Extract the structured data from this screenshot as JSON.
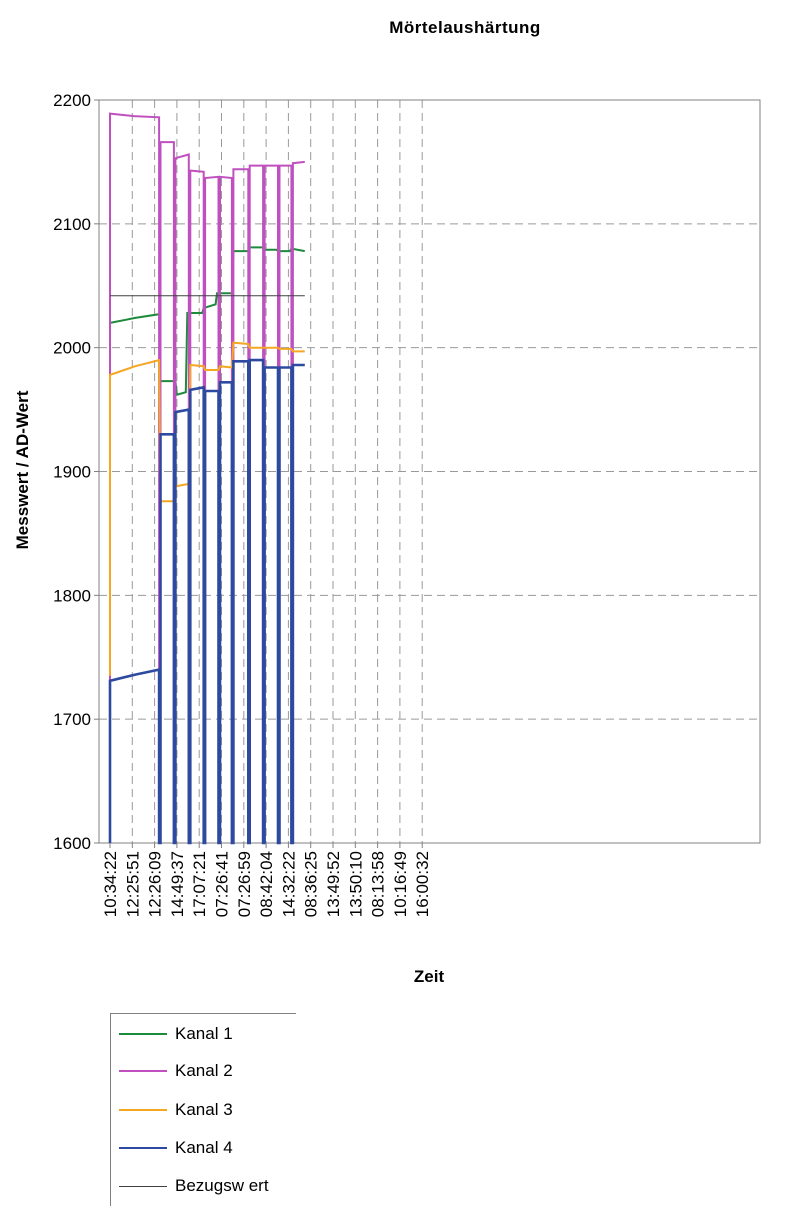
{
  "chart_data": {
    "type": "line",
    "title": "Mörtelaushärtung",
    "xlabel": "Zeit",
    "ylabel": "Messwert / AD-Wert",
    "ylim": [
      1600,
      2200
    ],
    "yticks": [
      1600,
      1700,
      1800,
      1900,
      2000,
      2100,
      2200
    ],
    "xticks": [
      "10:34:22",
      "12:25:51",
      "12:26:09",
      "14:49:37",
      "17:07:21",
      "07:26:41",
      "07:26:59",
      "08:42:04",
      "14:32:22",
      "08:36:25",
      "13:49:52",
      "13:50:10",
      "08:13:58",
      "10:16:49",
      "16:00:32"
    ],
    "x_unit": "measurement index (tick labels are timestamps at every 15th sample)",
    "grid": true,
    "legend_position": "bottom-left",
    "series": [
      {
        "name": "Kanal 1",
        "color": "#1e8a3c",
        "points": [
          [
            0,
            2020
          ],
          [
            17,
            2024
          ],
          [
            33,
            2027
          ],
          [
            34,
            1973
          ],
          [
            44,
            1973
          ],
          [
            45,
            1962
          ],
          [
            51,
            1964
          ],
          [
            52,
            2028
          ],
          [
            62,
            2028
          ],
          [
            63,
            2032
          ],
          [
            71,
            2035
          ],
          [
            72,
            2044
          ],
          [
            82,
            2044
          ],
          [
            83,
            2078
          ],
          [
            93,
            2078
          ],
          [
            94,
            2081
          ],
          [
            103,
            2081
          ],
          [
            104,
            2079
          ],
          [
            112,
            2079
          ],
          [
            113,
            2078
          ],
          [
            121,
            2078
          ],
          [
            122,
            2080
          ],
          [
            131,
            2078
          ]
        ]
      },
      {
        "name": "Kanal 2",
        "color": "#c050c0",
        "points": [
          [
            0,
            1600
          ],
          [
            0,
            2189
          ],
          [
            16,
            2187
          ],
          [
            33,
            2186
          ],
          [
            33,
            1600
          ],
          [
            34,
            1600
          ],
          [
            34,
            2166
          ],
          [
            43,
            2166
          ],
          [
            43,
            1600
          ],
          [
            44,
            1600
          ],
          [
            44,
            2153
          ],
          [
            53,
            2156
          ],
          [
            53,
            1600
          ],
          [
            54,
            1600
          ],
          [
            54,
            2143
          ],
          [
            63,
            2142
          ],
          [
            63,
            1600
          ],
          [
            64,
            1600
          ],
          [
            64,
            2137
          ],
          [
            73,
            2138
          ],
          [
            73,
            1600
          ],
          [
            74,
            1600
          ],
          [
            74,
            2138
          ],
          [
            82,
            2137
          ],
          [
            82,
            1600
          ],
          [
            83,
            1600
          ],
          [
            83,
            2144
          ],
          [
            93,
            2144
          ],
          [
            93,
            1600
          ],
          [
            94,
            1600
          ],
          [
            94,
            2147
          ],
          [
            103,
            2147
          ],
          [
            103,
            1600
          ],
          [
            104,
            1600
          ],
          [
            104,
            2147
          ],
          [
            113,
            2147
          ],
          [
            113,
            1600
          ],
          [
            114,
            1600
          ],
          [
            114,
            2147
          ],
          [
            122,
            2147
          ],
          [
            122,
            1600
          ],
          [
            123,
            1600
          ],
          [
            123,
            2149
          ],
          [
            131,
            2150
          ]
        ]
      },
      {
        "name": "Kanal 3",
        "color": "#f5a623",
        "points": [
          [
            0,
            1735
          ],
          [
            0,
            1978
          ],
          [
            17,
            1985
          ],
          [
            33,
            1990
          ],
          [
            34,
            1876
          ],
          [
            43,
            1876
          ],
          [
            44,
            1888
          ],
          [
            53,
            1890
          ],
          [
            54,
            1986
          ],
          [
            63,
            1985
          ],
          [
            64,
            1982
          ],
          [
            73,
            1982
          ],
          [
            74,
            1985
          ],
          [
            82,
            1984
          ],
          [
            83,
            2004
          ],
          [
            93,
            2003
          ],
          [
            94,
            2000
          ],
          [
            103,
            2000
          ],
          [
            104,
            2000
          ],
          [
            113,
            2000
          ],
          [
            114,
            1999
          ],
          [
            122,
            1999
          ],
          [
            123,
            1997
          ],
          [
            131,
            1997
          ]
        ]
      },
      {
        "name": "Kanal 4",
        "color": "#2e4aa0",
        "points": [
          [
            0,
            1600
          ],
          [
            0,
            1731
          ],
          [
            17,
            1736
          ],
          [
            33,
            1740
          ],
          [
            33,
            1600
          ],
          [
            34,
            1600
          ],
          [
            34,
            1930
          ],
          [
            43,
            1930
          ],
          [
            43,
            1600
          ],
          [
            44,
            1600
          ],
          [
            44,
            1948
          ],
          [
            53,
            1950
          ],
          [
            53,
            1600
          ],
          [
            54,
            1600
          ],
          [
            54,
            1966
          ],
          [
            63,
            1968
          ],
          [
            63,
            1600
          ],
          [
            64,
            1600
          ],
          [
            64,
            1965
          ],
          [
            73,
            1965
          ],
          [
            73,
            1600
          ],
          [
            74,
            1600
          ],
          [
            74,
            1972
          ],
          [
            82,
            1972
          ],
          [
            82,
            1600
          ],
          [
            83,
            1600
          ],
          [
            83,
            1989
          ],
          [
            93,
            1989
          ],
          [
            93,
            1600
          ],
          [
            94,
            1600
          ],
          [
            94,
            1990
          ],
          [
            103,
            1990
          ],
          [
            103,
            1600
          ],
          [
            104,
            1600
          ],
          [
            104,
            1984
          ],
          [
            113,
            1984
          ],
          [
            113,
            1600
          ],
          [
            114,
            1600
          ],
          [
            114,
            1984
          ],
          [
            122,
            1984
          ],
          [
            122,
            1600
          ],
          [
            123,
            1600
          ],
          [
            123,
            1986
          ],
          [
            131,
            1986
          ]
        ]
      },
      {
        "name": "Bezugswert",
        "color": "#404040",
        "points": [
          [
            0,
            2042
          ],
          [
            131,
            2042
          ]
        ]
      }
    ]
  },
  "legend": {
    "items": [
      {
        "label": "Kanal 1",
        "color": "#1e8a3c"
      },
      {
        "label": "Kanal 2",
        "color": "#c050c0"
      },
      {
        "label": "Kanal 3",
        "color": "#f5a623"
      },
      {
        "label": "Kanal 4",
        "color": "#2e4aa0"
      },
      {
        "label": "Bezugsw ert",
        "color": "#404040"
      }
    ]
  }
}
